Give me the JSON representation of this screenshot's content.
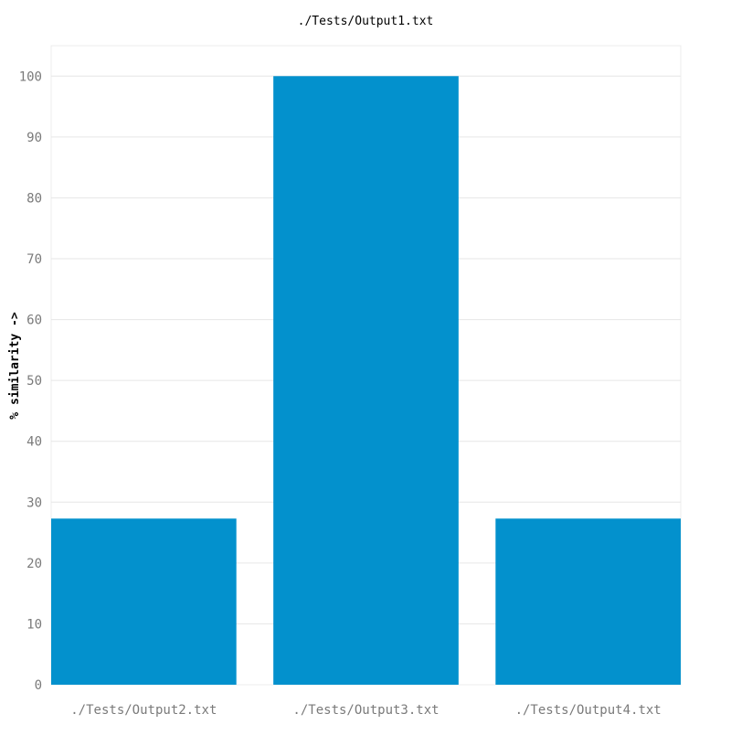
{
  "chart_data": {
    "type": "bar",
    "title": "./Tests/Output1.txt",
    "xlabel": "",
    "ylabel": "% similarity ->",
    "categories": [
      "./Tests/Output2.txt",
      "./Tests/Output3.txt",
      "./Tests/Output4.txt"
    ],
    "values": [
      27.3,
      100,
      27.3
    ],
    "ylim": [
      0,
      105
    ],
    "yticks": [
      "0",
      "10",
      "20",
      "30",
      "40",
      "50",
      "60",
      "70",
      "80",
      "90",
      "100"
    ],
    "grid": true,
    "legend": "none",
    "colors": {
      "bar": "#0391cd",
      "grid": "#e6e6e6",
      "tick_text": "#7a7a7a",
      "title_text": "#000000"
    }
  }
}
